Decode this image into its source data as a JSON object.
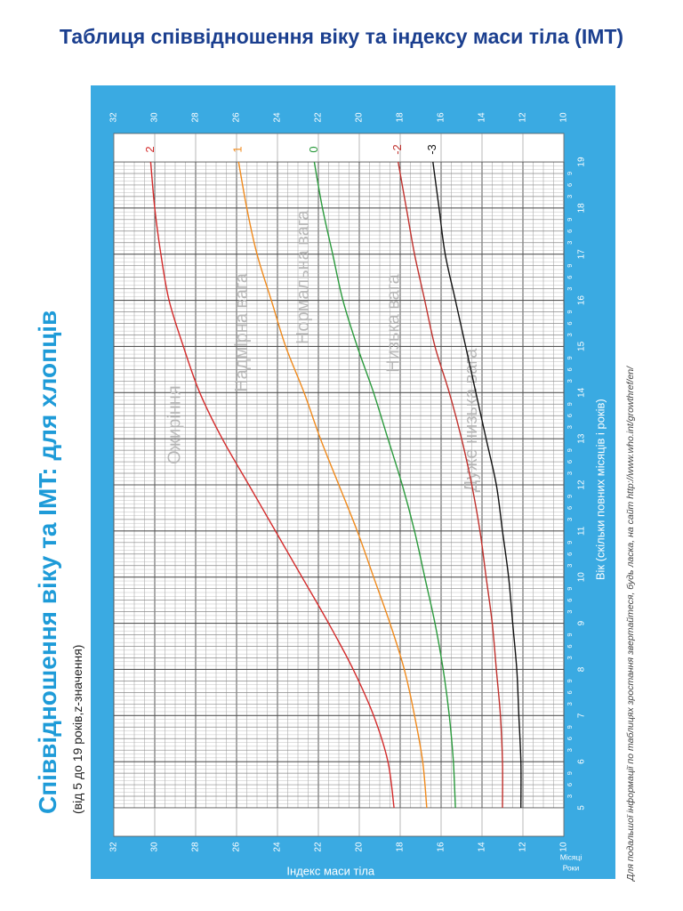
{
  "header": {
    "title": "Таблиця співвідношення віку та індексу маси тіла (IMT)"
  },
  "side": {
    "title": "Співвідношення віку та IMT: для хлопців",
    "subtitle": "(від 5 до 19 років,z-значення)"
  },
  "footnote": "Для подальшої інформації по таблицях зростання звертайтеся, будь ласка, на сайт  http://www.who.int/growthref/en/",
  "colors": {
    "frame": "#3aaae2",
    "grid": "#888888",
    "title": "#1b3f8f",
    "side_title": "#1e9bd8"
  },
  "chart_data": {
    "type": "line",
    "xlabel": "Вік (скільки повних місяців і років)",
    "ylabel": "Індекс маси тіла",
    "x_axis_caption_top": "Місяці",
    "x_axis_caption_bottom": "Роки",
    "x_ticks": [
      "5",
      "6",
      "7",
      "8",
      "9",
      "10",
      "11",
      "12",
      "13",
      "14",
      "15",
      "16",
      "17",
      "18",
      "19"
    ],
    "month_ticks": [
      "3",
      "6",
      "9"
    ],
    "y_ticks": [
      "10",
      "12",
      "14",
      "16",
      "18",
      "20",
      "22",
      "24",
      "26",
      "28",
      "30",
      "32"
    ],
    "xlim": [
      5,
      19
    ],
    "ylim": [
      10,
      32
    ],
    "x": [
      5,
      6,
      7,
      8,
      9,
      10,
      11,
      12,
      13,
      14,
      15,
      16,
      17,
      18,
      19
    ],
    "series": [
      {
        "name": "2",
        "color": "#d42b2b",
        "values": [
          18.3,
          18.6,
          19.3,
          20.3,
          21.5,
          22.8,
          24.1,
          25.4,
          26.7,
          27.8,
          28.6,
          29.3,
          29.7,
          30.0,
          30.2
        ]
      },
      {
        "name": "1",
        "color": "#f08a1c",
        "values": [
          16.7,
          16.9,
          17.3,
          17.8,
          18.5,
          19.3,
          20.1,
          21.0,
          21.9,
          22.7,
          23.6,
          24.3,
          25.0,
          25.5,
          25.9
        ]
      },
      {
        "name": "0",
        "color": "#2a9a3c",
        "values": [
          15.3,
          15.4,
          15.6,
          15.9,
          16.3,
          16.8,
          17.3,
          17.9,
          18.6,
          19.3,
          20.1,
          20.8,
          21.3,
          21.8,
          22.2
        ]
      },
      {
        "name": "-2",
        "color": "#c0302c",
        "values": [
          13.0,
          13.0,
          13.1,
          13.3,
          13.5,
          13.8,
          14.1,
          14.5,
          15.0,
          15.6,
          16.3,
          16.8,
          17.3,
          17.7,
          18.1
        ]
      },
      {
        "name": "-3",
        "color": "#111111",
        "values": [
          12.1,
          12.1,
          12.2,
          12.3,
          12.5,
          12.7,
          13.0,
          13.3,
          13.8,
          14.3,
          14.8,
          15.3,
          15.8,
          16.1,
          16.4
        ]
      }
    ],
    "zone_labels": [
      {
        "text": "Ожиріння",
        "x": 13.3,
        "y": 29.0
      },
      {
        "text": "Надмірна вага",
        "x": 15.3,
        "y": 25.7
      },
      {
        "text": "Нормальна вага",
        "x": 16.5,
        "y": 22.7
      },
      {
        "text": "Низька вага",
        "x": 15.5,
        "y": 18.3
      },
      {
        "text": "Дуже низька вага",
        "x": 13.4,
        "y": 14.5
      }
    ]
  }
}
